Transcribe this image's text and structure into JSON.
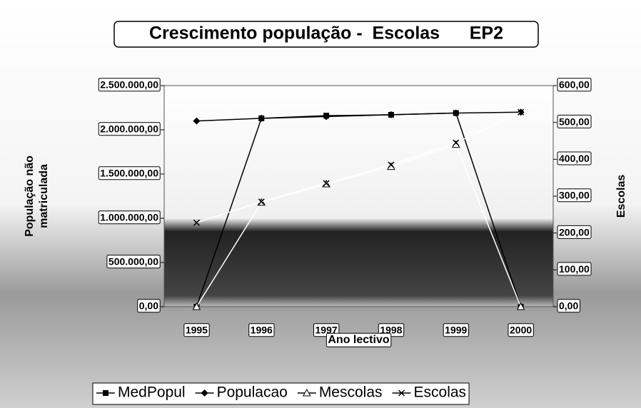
{
  "chart_data": {
    "type": "line",
    "title": "Crescimento população -  Escolas      EP2",
    "xlabel": "Ano lectivo",
    "ylabel": [
      "População não",
      "matriculada"
    ],
    "y2label": "Escolas",
    "categories": [
      "1995",
      "1996",
      "1997",
      "1998",
      "1999",
      "2000"
    ],
    "ylim": [
      0,
      2500000
    ],
    "yticks": [
      {
        "value": 0,
        "label": "0,00"
      },
      {
        "value": 500000,
        "label": "500.000,00"
      },
      {
        "value": 1000000,
        "label": "1.000.000,00"
      },
      {
        "value": 1500000,
        "label": "1.500.000,00"
      },
      {
        "value": 2000000,
        "label": "2.000.000,00"
      },
      {
        "value": 2500000,
        "label": "2.500.000,00"
      }
    ],
    "y2lim": [
      0,
      600
    ],
    "y2ticks": [
      {
        "value": 0,
        "label": "0,00"
      },
      {
        "value": 100,
        "label": "100,00"
      },
      {
        "value": 200,
        "label": "200,00"
      },
      {
        "value": 300,
        "label": "300,00"
      },
      {
        "value": 400,
        "label": "400,00"
      },
      {
        "value": 500,
        "label": "500,00"
      },
      {
        "value": 600,
        "label": "600,00"
      }
    ],
    "series": [
      {
        "name": "MedPopul",
        "color": "#000000",
        "marker": "square",
        "values": [
          0,
          2130000,
          2160000,
          2170000,
          2190000,
          0
        ]
      },
      {
        "name": "Populacao",
        "color": "#000000",
        "marker": "diamond",
        "values": [
          2100000,
          2130000,
          2150000,
          2170000,
          2190000,
          2200000
        ]
      },
      {
        "name": "Mescolas",
        "color": "#000000",
        "marker": "triangle",
        "axis": "y2",
        "values": [
          0,
          283,
          333,
          380,
          440,
          0
        ]
      },
      {
        "name": "Escolas",
        "color": "#000000",
        "marker": "x",
        "axis": "y2",
        "values": [
          228,
          285,
          335,
          385,
          445,
          528
        ]
      }
    ],
    "legend": "bottom"
  }
}
